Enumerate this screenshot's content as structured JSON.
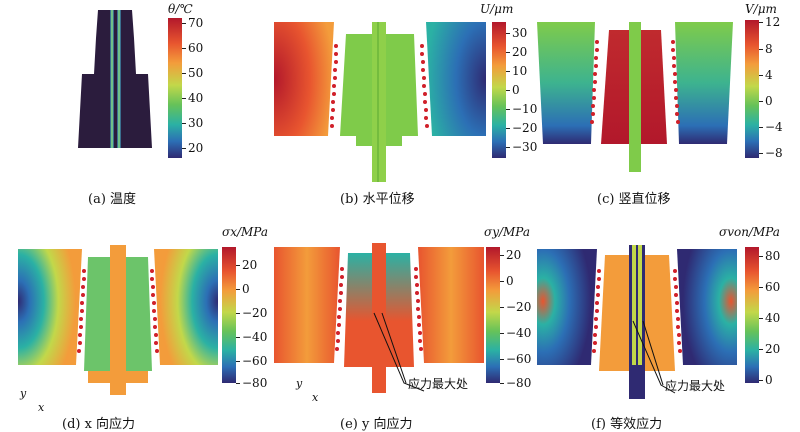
{
  "panels": [
    {
      "caption": "(a) 温度",
      "colorbar_title": "θ/℃",
      "ticks": [
        "70",
        "60",
        "50",
        "40",
        "30",
        "20"
      ]
    },
    {
      "caption": "(b) 水平位移",
      "colorbar_title": "U/μm",
      "ticks": [
        "30",
        "20",
        "10",
        "0",
        "−10",
        "−20",
        "−30"
      ]
    },
    {
      "caption": "(c) 竖直位移",
      "colorbar_title": "V/μm",
      "ticks": [
        "12",
        "8",
        "4",
        "0",
        "−4",
        "−8"
      ]
    },
    {
      "caption": "(d) x 向应力",
      "colorbar_title": "σx/MPa",
      "ticks": [
        "20",
        "0",
        "−20",
        "−40",
        "−60",
        "−80"
      ]
    },
    {
      "caption": "(e) y 向应力",
      "colorbar_title": "σy/MPa",
      "ticks": [
        "20",
        "0",
        "−20",
        "−40",
        "−60",
        "−80"
      ]
    },
    {
      "caption": "(f) 等效应力",
      "colorbar_title": "σvon/MPa",
      "ticks": [
        "80",
        "60",
        "40",
        "20",
        "0"
      ]
    }
  ],
  "annotations": {
    "max_stress_e": "应力最大处",
    "max_stress_f": "应力最大处"
  },
  "axes": {
    "y": "y",
    "x": "x"
  },
  "colors": {
    "max": "#b2182b",
    "mid": "#66c259",
    "min": "#2f2a72",
    "rivet": "#d0202a"
  }
}
